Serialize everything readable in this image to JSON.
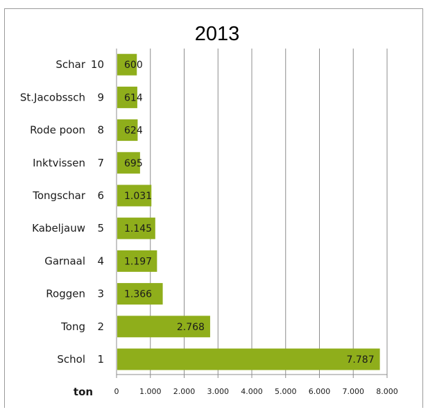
{
  "chart_data": {
    "type": "bar",
    "orientation": "horizontal",
    "title": "2013",
    "xlabel": "ton",
    "ylabel": "",
    "xlim": [
      0,
      8000
    ],
    "grid": true,
    "bar_color": "#8fae1b",
    "categories": [
      "Schol",
      "Tong",
      "Roggen",
      "Garnaal",
      "Kabeljauw",
      "Tongschar",
      "Inktvissen",
      "Rode poon",
      "St.Jacobssch",
      "Schar"
    ],
    "ranks": [
      "1",
      "2",
      "3",
      "4",
      "5",
      "6",
      "7",
      "8",
      "9",
      "10"
    ],
    "values": [
      7787,
      2768,
      1366,
      1197,
      1145,
      1031,
      695,
      624,
      614,
      600
    ],
    "value_labels": [
      "7.787",
      "2.768",
      "1.366",
      "1.197",
      "1.145",
      "1.031",
      "695",
      "624",
      "614",
      "600"
    ],
    "x_ticks": [
      0,
      1000,
      2000,
      3000,
      4000,
      5000,
      6000,
      7000,
      8000
    ],
    "x_tick_labels": [
      "0",
      "1.000",
      "2.000",
      "3.000",
      "4.000",
      "5.000",
      "6.000",
      "7.000",
      "8.000"
    ]
  }
}
